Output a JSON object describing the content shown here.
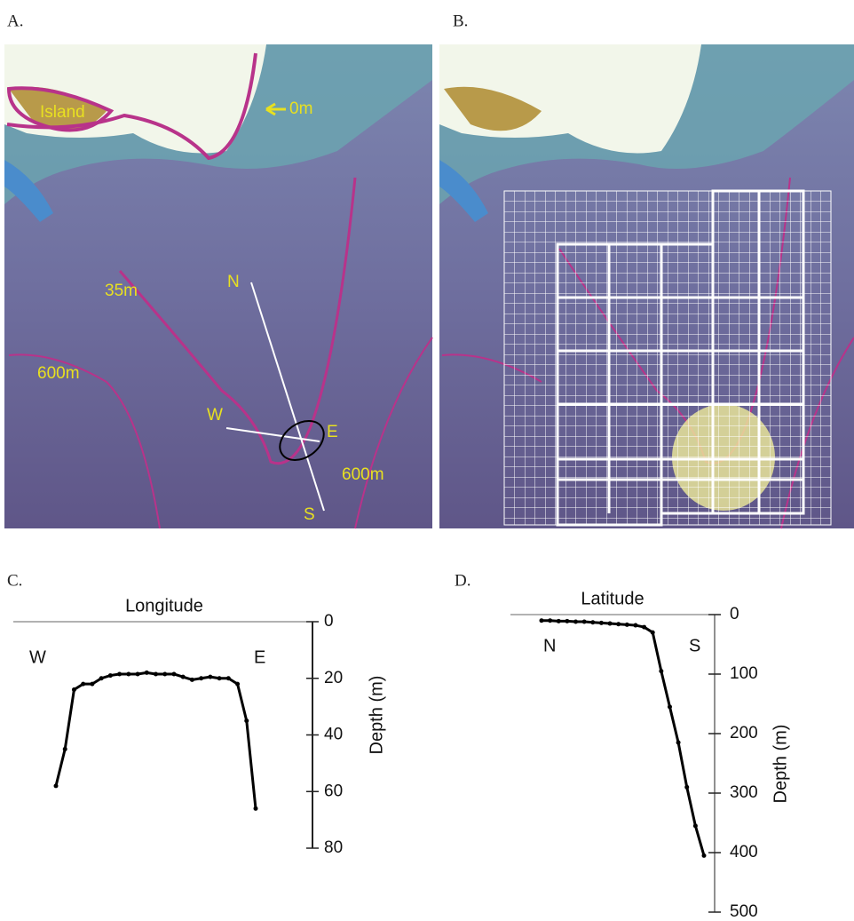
{
  "panels": {
    "a": {
      "label": "A.",
      "annotations": [
        "Island",
        "0m",
        "35m",
        "N",
        "600m",
        "W",
        "E",
        "600m",
        "S"
      ]
    },
    "b": {
      "label": "B."
    }
  },
  "chart_data": [
    {
      "type": "line",
      "panel_label": "C.",
      "x_label": "Longitude",
      "y_label": "Depth (m)",
      "annotations": [
        "W",
        "E"
      ],
      "categories": [
        null,
        null,
        null,
        null,
        null,
        null,
        null,
        null,
        null,
        null,
        null,
        null,
        null,
        null,
        null,
        null,
        null,
        null,
        null,
        null,
        null,
        null,
        null
      ],
      "series": [
        {
          "color": "#000000",
          "values": [
            58,
            45,
            24,
            22,
            22,
            20,
            19,
            18.5,
            18.5,
            18.5,
            18,
            18.5,
            18.5,
            18.5,
            19.5,
            20.5,
            20,
            19.5,
            20,
            20,
            22,
            35,
            66
          ]
        }
      ],
      "ylim": [
        0,
        80
      ],
      "yticks": [
        0,
        20,
        40,
        60,
        80
      ],
      "y_inverted": true
    },
    {
      "type": "line",
      "panel_label": "D.",
      "x_label": "Latitude",
      "y_label": "Depth (m)",
      "annotations": [
        "N",
        "S"
      ],
      "categories": [
        null,
        null,
        null,
        null,
        null,
        null,
        null,
        null,
        null,
        null,
        null,
        null,
        null,
        null,
        null,
        null,
        null,
        null,
        null,
        null
      ],
      "series": [
        {
          "color": "#000000",
          "values": [
            10,
            10,
            11,
            11,
            12,
            12,
            13,
            14,
            15,
            16,
            17,
            18,
            21,
            30,
            95,
            155,
            215,
            290,
            355,
            405
          ]
        }
      ],
      "ylim": [
        0,
        500
      ],
      "yticks": [
        0,
        100,
        200,
        300,
        400,
        500
      ],
      "y_inverted": true
    }
  ]
}
